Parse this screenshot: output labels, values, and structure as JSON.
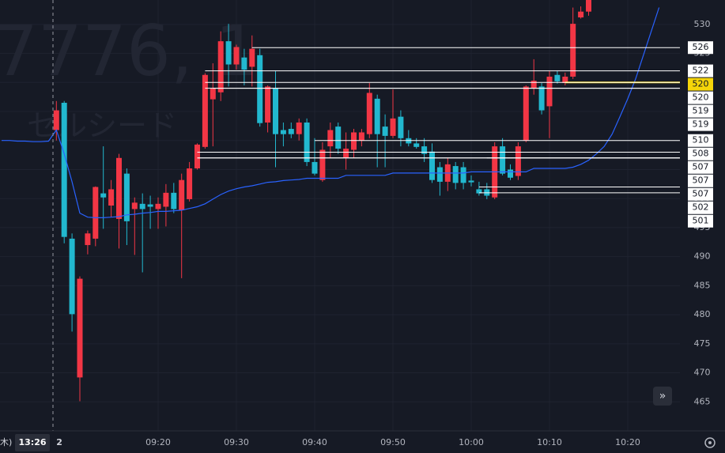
{
  "chart_data": {
    "type": "candlestick",
    "watermark_title": "7776, 1",
    "watermark_subtitle": "セルシード",
    "day_label": "木)",
    "crosshair_label": "13:26",
    "up_color": "#f23645",
    "down_color": "#22b8cf",
    "ma_color": "#2962ff",
    "grid": true,
    "ylim": [
      460,
      534.2
    ],
    "yticks": [
      465,
      470,
      475,
      480,
      485,
      490,
      495,
      500,
      505,
      510,
      515,
      520,
      525,
      530
    ],
    "categories": [
      null,
      null,
      null,
      null,
      null,
      null,
      null,
      "2",
      null,
      null,
      null,
      null,
      null,
      null,
      null,
      null,
      null,
      null,
      null,
      null,
      "09:20",
      null,
      null,
      null,
      null,
      null,
      null,
      null,
      null,
      null,
      "09:30",
      null,
      null,
      null,
      null,
      null,
      null,
      null,
      null,
      null,
      "09:40",
      null,
      null,
      null,
      null,
      null,
      null,
      null,
      null,
      null,
      "09:50",
      null,
      null,
      null,
      null,
      null,
      null,
      null,
      null,
      null,
      "10:00",
      null,
      null,
      null,
      null,
      null,
      null,
      null,
      null,
      null,
      "10:10",
      null,
      null,
      null,
      null,
      null,
      null,
      null,
      null,
      null,
      "10:20",
      null,
      null,
      null,
      null
    ],
    "open": [
      null,
      null,
      null,
      null,
      null,
      null,
      null,
      511.8,
      516.5,
      493.1,
      469.2,
      492.0,
      493.1,
      500.9,
      498.8,
      496.5,
      504.3,
      498.2,
      499.1,
      499.0,
      498.2,
      498.6,
      501.0,
      498.0,
      499.9,
      505.2,
      508.9,
      517.1,
      518.3,
      527.1,
      523.1,
      524.3,
      522.7,
      524.7,
      513.1,
      519.0,
      511.8,
      512.0,
      511.1,
      513.1,
      506.3,
      503.2,
      509.0,
      512.4,
      507.0,
      508.4,
      510.0,
      511.1,
      517.2,
      512.4,
      510.8,
      514.1,
      510.4,
      509.5,
      509.0,
      508.1,
      505.4,
      502.9,
      505.6,
      505.4,
      503.1,
      501.6,
      501.6,
      500.2,
      509.0,
      505.0,
      503.9,
      510.0,
      519.0,
      519.3,
      515.9,
      521.3,
      519.9,
      521.0,
      531.2,
      532.2,
      null,
      null,
      null,
      null,
      null,
      null,
      null,
      null,
      null
    ],
    "high": [
      null,
      null,
      null,
      null,
      null,
      null,
      null,
      516.8,
      516.8,
      494.0,
      486.6,
      494.5,
      502.1,
      509.0,
      503.2,
      507.7,
      505.2,
      500.2,
      500.9,
      500.5,
      500.2,
      502.5,
      502.7,
      504.3,
      506.3,
      509.5,
      521.6,
      523.3,
      528.8,
      530.1,
      526.5,
      525.8,
      528.1,
      525.8,
      519.5,
      522.0,
      513.1,
      513.1,
      513.8,
      513.8,
      510.4,
      509.7,
      513.1,
      513.1,
      511.4,
      512.0,
      512.0,
      519.9,
      517.9,
      514.5,
      518.8,
      515.2,
      511.8,
      510.4,
      510.4,
      509.5,
      506.3,
      507.0,
      506.3,
      506.3,
      504.0,
      502.9,
      502.7,
      509.7,
      510.4,
      505.9,
      509.7,
      519.5,
      524.0,
      519.9,
      522.0,
      522.0,
      521.7,
      532.9,
      533.1,
      534.9,
      null,
      null,
      null,
      null,
      null,
      null,
      null,
      null,
      null
    ],
    "low": [
      null,
      null,
      null,
      null,
      null,
      null,
      null,
      510.0,
      492.3,
      477.1,
      465.1,
      490.4,
      491.8,
      494.8,
      496.8,
      491.4,
      492.0,
      490.3,
      487.3,
      494.8,
      494.8,
      495.2,
      497.5,
      486.3,
      499.5,
      505.0,
      508.6,
      509.0,
      516.8,
      519.3,
      522.2,
      519.5,
      519.3,
      512.4,
      511.4,
      505.4,
      509.0,
      510.4,
      510.0,
      505.6,
      504.0,
      502.9,
      507.0,
      507.7,
      505.0,
      507.0,
      509.0,
      510.4,
      505.4,
      505.4,
      510.4,
      509.0,
      509.0,
      508.6,
      506.3,
      502.7,
      500.5,
      501.3,
      501.6,
      501.6,
      502.1,
      500.5,
      499.9,
      499.9,
      504.0,
      503.2,
      503.2,
      509.7,
      517.9,
      514.5,
      510.4,
      519.8,
      519.5,
      520.6,
      531.0,
      531.5,
      null,
      null,
      null,
      null,
      null,
      null,
      null,
      null,
      null
    ],
    "close": [
      null,
      null,
      null,
      null,
      null,
      null,
      null,
      515.2,
      493.4,
      480.1,
      486.2,
      494.0,
      502.0,
      500.2,
      501.6,
      507.0,
      496.1,
      499.3,
      498.2,
      498.6,
      499.1,
      501.0,
      498.2,
      503.2,
      505.2,
      509.3,
      521.3,
      519.0,
      527.1,
      523.1,
      526.1,
      522.2,
      525.8,
      513.0,
      519.3,
      511.1,
      511.1,
      511.1,
      513.1,
      506.3,
      504.3,
      508.4,
      511.8,
      508.6,
      508.6,
      511.4,
      511.4,
      518.2,
      511.1,
      510.8,
      513.8,
      510.4,
      509.5,
      508.9,
      507.7,
      503.2,
      502.9,
      505.9,
      502.7,
      502.7,
      502.8,
      500.9,
      500.5,
      509.0,
      504.3,
      503.6,
      509.0,
      519.3,
      520.3,
      515.2,
      521.0,
      520.2,
      521.0,
      530.1,
      532.2,
      534.2,
      null,
      null,
      null,
      null,
      null,
      null,
      null,
      null,
      null
    ],
    "ma": [
      510.0,
      510.0,
      509.9,
      509.9,
      509.8,
      509.8,
      509.9,
      511.8,
      507.7,
      502.9,
      497.5,
      496.8,
      496.7,
      496.7,
      496.8,
      496.9,
      497.2,
      497.3,
      497.5,
      497.6,
      497.8,
      497.8,
      497.9,
      498.0,
      498.3,
      498.6,
      499.1,
      499.9,
      500.7,
      501.3,
      501.7,
      502.0,
      502.2,
      502.5,
      502.8,
      502.9,
      503.1,
      503.2,
      503.3,
      503.5,
      503.5,
      503.5,
      503.5,
      503.5,
      504.0,
      504.0,
      504.0,
      504.0,
      504.0,
      504.0,
      504.4,
      504.4,
      504.4,
      504.4,
      504.4,
      504.4,
      504.4,
      504.4,
      504.4,
      504.4,
      504.6,
      504.6,
      504.6,
      504.6,
      504.6,
      504.6,
      504.6,
      504.6,
      505.2,
      505.2,
      505.2,
      505.2,
      505.2,
      505.4,
      505.9,
      506.6,
      507.7,
      509.0,
      511.1,
      514.1,
      517.2,
      520.6,
      524.7,
      528.8,
      532.9
    ],
    "levels": [
      526,
      522,
      520,
      520,
      519,
      519,
      510,
      508,
      507,
      507,
      507,
      502,
      501
    ],
    "level_from": [
      32,
      26,
      72,
      26,
      26,
      27,
      40,
      25,
      25,
      25,
      62,
      61,
      61
    ],
    "highlight_level": 2,
    "highlight_color": "#f5d50a"
  }
}
